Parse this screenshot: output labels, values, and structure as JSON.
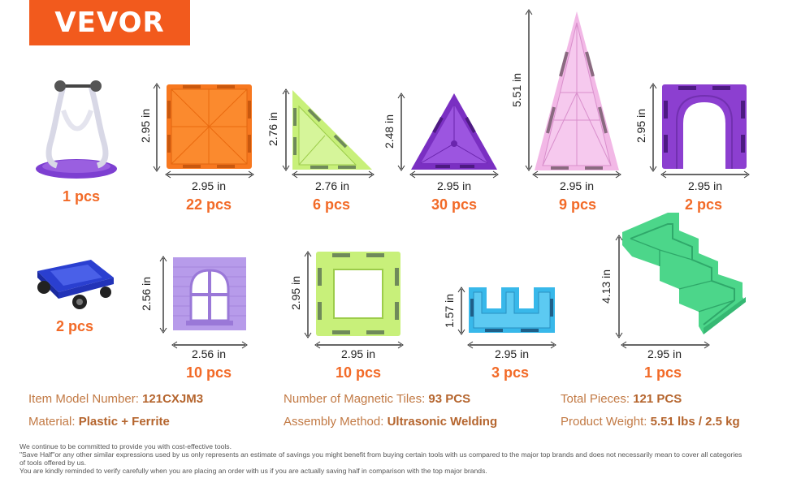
{
  "brand": {
    "logo_text": "VEVOR"
  },
  "pieces": [
    {
      "name": "stand",
      "quantity": "1 pcs"
    },
    {
      "name": "square",
      "width": "2.95 in",
      "height": "2.95 in",
      "quantity": "22 pcs"
    },
    {
      "name": "right-triangle",
      "width": "2.76 in",
      "height": "2.76 in",
      "quantity": "6 pcs"
    },
    {
      "name": "equilateral-triangle",
      "width": "2.95 in",
      "height": "2.48 in",
      "quantity": "30 pcs"
    },
    {
      "name": "tall-triangle",
      "width": "2.95 in",
      "height": "5.51 in",
      "quantity": "9 pcs"
    },
    {
      "name": "arch",
      "width": "2.95 in",
      "height": "2.95 in",
      "quantity": "2 pcs"
    },
    {
      "name": "car-base",
      "quantity": "2 pcs"
    },
    {
      "name": "window",
      "width": "2.56 in",
      "height": "2.56 in",
      "quantity": "10 pcs"
    },
    {
      "name": "frame-square",
      "width": "2.95 in",
      "height": "2.95 in",
      "quantity": "10 pcs"
    },
    {
      "name": "battlement",
      "width": "2.95 in",
      "height": "1.57 in",
      "quantity": "3 pcs"
    },
    {
      "name": "stairs",
      "width": "2.95 in",
      "height": "4.13 in",
      "quantity": "1 pcs"
    }
  ],
  "specs": {
    "model_label": "Item Model Number:",
    "model_value": "121CXJM3",
    "tiles_label": "Number of Magnetic Tiles:",
    "tiles_value": "93 PCS",
    "total_label": "Total Pieces:",
    "total_value": "121 PCS",
    "material_label": "Material:",
    "material_value": "Plastic + Ferrite",
    "assembly_label": "Assembly Method:",
    "assembly_value": "Ultrasonic Welding",
    "weight_label": "Product Weight:",
    "weight_value": "5.51 lbs / 2.5 kg"
  },
  "disclaimer": {
    "line1": "We continue to be committed to provide you with cost-effective tools.",
    "line2": "\"Save Half\"or any other similar expressions used by us only represents an estimate of savings you might benefit from buying certain tools with us compared to the major top brands and does not necessarily mean to cover all categories",
    "line3": "of tools offered by us.",
    "line4": "You are kindly reminded to verify carefully when you are placing an order with us if you are actually saving half in comparison with the top major brands."
  },
  "colors": {
    "brand": "#f25a1d",
    "quantity": "#f26a27",
    "orange": "#f7781f",
    "lime": "#c8f07a",
    "purple": "#8c3fd0",
    "pink": "#f2b8e6",
    "violet": "#b79bea",
    "cyan": "#38b8ea",
    "green": "#4cd68a"
  }
}
